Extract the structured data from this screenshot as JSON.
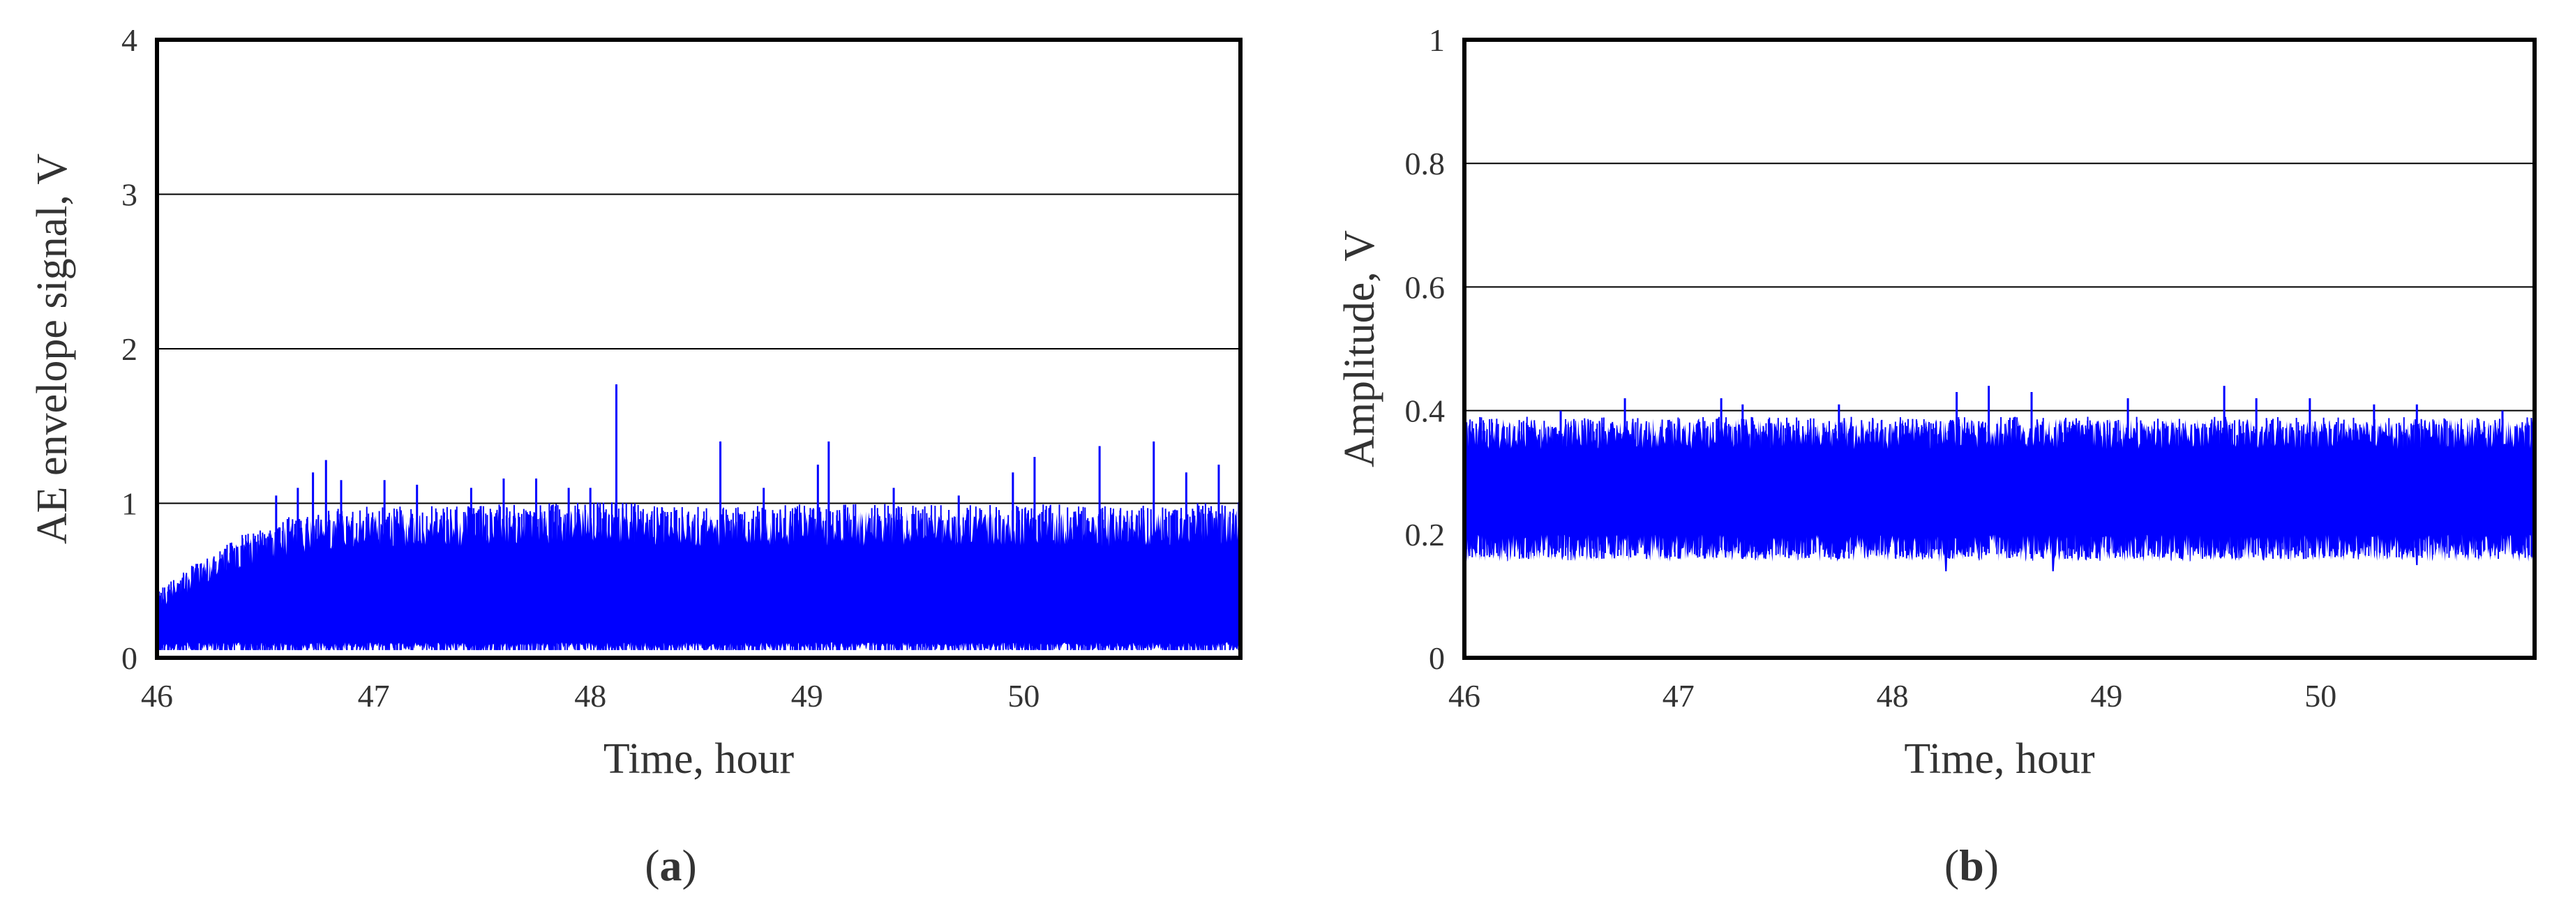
{
  "colors": {
    "series": "#0000ff",
    "frame": "#000000",
    "grid": "#000000",
    "text": "#333333"
  },
  "chart_data": [
    {
      "type": "line",
      "panel": "a",
      "caption": {
        "open": "(",
        "letter": "a",
        "close": ")"
      },
      "xlabel": "Time, hour",
      "ylabel": "AE envelope signal, V",
      "xlim": [
        46,
        51
      ],
      "ylim": [
        0,
        4
      ],
      "xticks": [
        46,
        47,
        48,
        49,
        50
      ],
      "xtick_labels": [
        "46",
        "47",
        "48",
        "49",
        "50"
      ],
      "yticks": [
        0,
        1,
        2,
        3,
        4
      ],
      "ytick_labels": [
        "0",
        "1",
        "2",
        "3",
        "4"
      ],
      "grid": "horizontal",
      "legend": "none",
      "series": [
        {
          "color": "#0000ff",
          "style": "dense noisy signal, minimum near 0.05 V",
          "envelope_upper": {
            "x": [
              46.0,
              46.2,
              46.4,
              46.6,
              46.8,
              47.0,
              47.5,
              48.0,
              48.5,
              49.0,
              49.5,
              50.0,
              50.5,
              51.0
            ],
            "y": [
              0.4,
              0.6,
              0.75,
              0.85,
              0.9,
              0.92,
              0.93,
              0.95,
              0.92,
              0.93,
              0.93,
              0.93,
              0.92,
              0.95
            ]
          },
          "baseline_y": 0.05,
          "peaks": [
            {
              "x": 46.55,
              "y": 1.05
            },
            {
              "x": 46.65,
              "y": 1.1
            },
            {
              "x": 46.72,
              "y": 1.2
            },
            {
              "x": 46.78,
              "y": 1.28
            },
            {
              "x": 46.85,
              "y": 1.15
            },
            {
              "x": 47.05,
              "y": 1.15
            },
            {
              "x": 47.2,
              "y": 1.12
            },
            {
              "x": 47.45,
              "y": 1.1
            },
            {
              "x": 47.6,
              "y": 1.16
            },
            {
              "x": 47.75,
              "y": 1.16
            },
            {
              "x": 47.9,
              "y": 1.1
            },
            {
              "x": 48.0,
              "y": 1.1
            },
            {
              "x": 48.12,
              "y": 1.77
            },
            {
              "x": 48.6,
              "y": 1.4
            },
            {
              "x": 48.8,
              "y": 1.1
            },
            {
              "x": 49.05,
              "y": 1.25
            },
            {
              "x": 49.1,
              "y": 1.4
            },
            {
              "x": 49.4,
              "y": 1.1
            },
            {
              "x": 49.7,
              "y": 1.05
            },
            {
              "x": 49.95,
              "y": 1.2
            },
            {
              "x": 50.05,
              "y": 1.3
            },
            {
              "x": 50.35,
              "y": 1.37
            },
            {
              "x": 50.6,
              "y": 1.4
            },
            {
              "x": 50.75,
              "y": 1.2
            },
            {
              "x": 50.9,
              "y": 1.25
            }
          ]
        }
      ]
    },
    {
      "type": "line",
      "panel": "b",
      "caption": {
        "open": "(",
        "letter": "b",
        "close": ")"
      },
      "xlabel": "Time, hour",
      "ylabel": "Amplitude,  V",
      "xlim": [
        46,
        51
      ],
      "ylim": [
        0,
        1
      ],
      "xticks": [
        46,
        47,
        48,
        49,
        50
      ],
      "xtick_labels": [
        "46",
        "47",
        "48",
        "49",
        "50"
      ],
      "yticks": [
        0,
        0.2,
        0.4,
        0.6,
        0.8,
        1
      ],
      "ytick_labels": [
        "0",
        "0.2",
        "0.4",
        "0.6",
        "0.8",
        "1"
      ],
      "grid": "horizontal",
      "legend": "none",
      "series": [
        {
          "color": "#0000ff",
          "style": "dense noisy band between about 0.17 V and 0.37 V",
          "band_lower": 0.18,
          "band_upper": 0.36,
          "min_dips": [
            {
              "x": 46.3,
              "y": 0.16
            },
            {
              "x": 47.3,
              "y": 0.16
            },
            {
              "x": 47.75,
              "y": 0.16
            },
            {
              "x": 48.25,
              "y": 0.14
            },
            {
              "x": 48.75,
              "y": 0.14
            },
            {
              "x": 49.35,
              "y": 0.16
            },
            {
              "x": 49.85,
              "y": 0.16
            },
            {
              "x": 50.45,
              "y": 0.15
            }
          ],
          "peaks": [
            {
              "x": 46.45,
              "y": 0.4
            },
            {
              "x": 46.75,
              "y": 0.42
            },
            {
              "x": 47.2,
              "y": 0.42
            },
            {
              "x": 47.3,
              "y": 0.41
            },
            {
              "x": 47.75,
              "y": 0.41
            },
            {
              "x": 48.3,
              "y": 0.43
            },
            {
              "x": 48.45,
              "y": 0.44
            },
            {
              "x": 48.65,
              "y": 0.43
            },
            {
              "x": 49.1,
              "y": 0.42
            },
            {
              "x": 49.55,
              "y": 0.44
            },
            {
              "x": 49.7,
              "y": 0.42
            },
            {
              "x": 49.95,
              "y": 0.42
            },
            {
              "x": 50.25,
              "y": 0.41
            },
            {
              "x": 50.45,
              "y": 0.41
            },
            {
              "x": 50.85,
              "y": 0.4
            }
          ]
        }
      ]
    }
  ]
}
